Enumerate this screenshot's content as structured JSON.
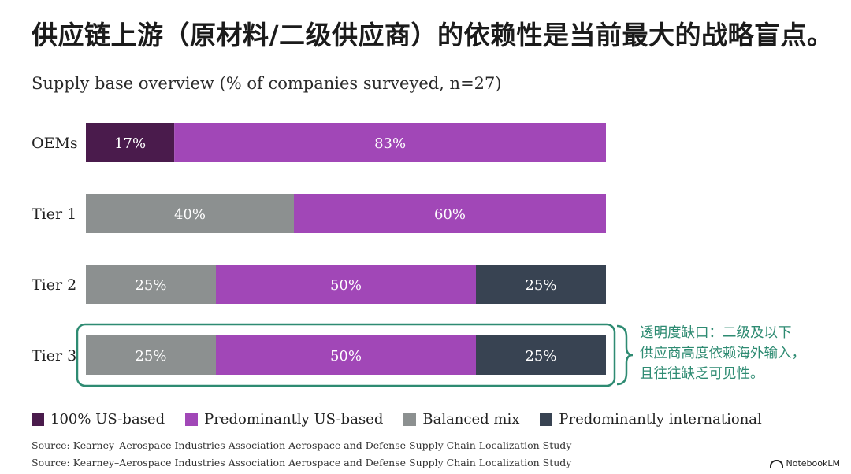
{
  "title": "供应链上游（原材料/二级供应商）的依赖性是当前最大的战略盲点。",
  "colors": {
    "us_based": "#4a1b4c",
    "predominantly_us": "#a147b7",
    "balanced": "#8c9090",
    "international": "#384352",
    "callout": "#2e8b72"
  },
  "callout": {
    "lines": [
      "透明度缺口：二级及以下",
      "供应商高度依赖海外输入，",
      "且往往缺乏可见性。"
    ]
  },
  "sources": [
    "Source: Kearney–Aerospace Industries Association Aerospace and Defense Supply Chain Localization Study",
    "Source: Kearney–Aerospace Industries Association Aerospace and Defense Supply Chain Localization Study"
  ],
  "brand": "NotebookLM",
  "chart_data": {
    "type": "bar",
    "orientation": "horizontal",
    "stacked": true,
    "title": "Supply base overview (% of companies surveyed, n=27)",
    "categories": [
      "OEMs",
      "Tier 1",
      "Tier 2",
      "Tier 3"
    ],
    "series": [
      {
        "name": "100% US-based",
        "values": [
          17,
          0,
          0,
          0
        ],
        "color": "#4a1b4c"
      },
      {
        "name": "Predominantly US-based",
        "values": [
          83,
          60,
          50,
          50
        ],
        "color": "#a147b7"
      },
      {
        "name": "Balanced mix",
        "values": [
          0,
          40,
          25,
          25
        ],
        "color": "#8c9090"
      },
      {
        "name": "Predominantly international",
        "values": [
          0,
          0,
          25,
          25
        ],
        "color": "#384352"
      }
    ],
    "segment_order": [
      [
        "100% US-based",
        "Predominantly US-based"
      ],
      [
        "Balanced mix",
        "Predominantly US-based"
      ],
      [
        "Balanced mix",
        "Predominantly US-based",
        "Predominantly international"
      ],
      [
        "Balanced mix",
        "Predominantly US-based",
        "Predominantly international"
      ]
    ],
    "xlim": [
      0,
      100
    ],
    "legend_position": "bottom",
    "grid": false,
    "highlighted_category": "Tier 3"
  }
}
